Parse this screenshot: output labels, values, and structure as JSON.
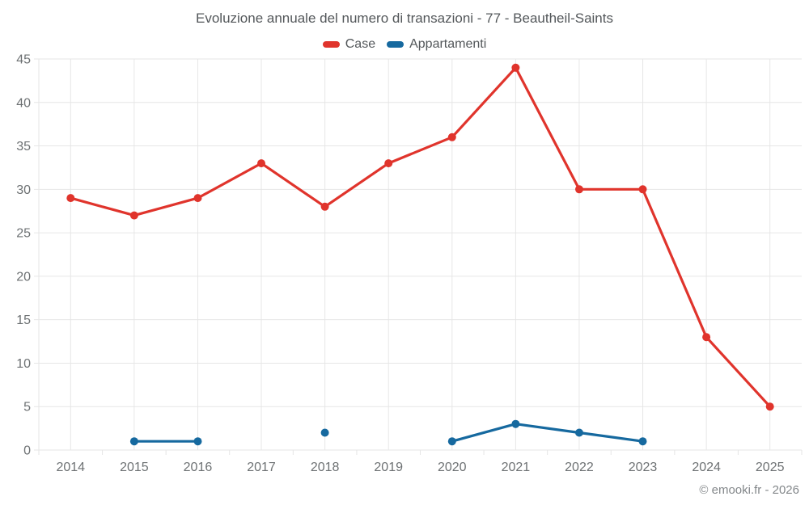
{
  "header": {
    "title": "Evoluzione annuale del numero di transazioni - 77 - Beautheil-Saints"
  },
  "footer": {
    "copyright": "© emooki.fr - 2026"
  },
  "colors": {
    "background": "#ffffff",
    "title_text": "#53575a",
    "axis_text": "#6d7173",
    "footer_text": "#83878a",
    "grid": "#e6e6e6",
    "case_red": "#e0342c",
    "appartamenti_blue": "#16699f"
  },
  "chart_data": {
    "type": "line",
    "title": "Evoluzione annuale del numero di transazioni - 77 - Beautheil-Saints",
    "xlabel": "",
    "ylabel": "",
    "categories": [
      "2014",
      "2015",
      "2016",
      "2017",
      "2018",
      "2019",
      "2020",
      "2021",
      "2022",
      "2023",
      "2024",
      "2025"
    ],
    "series": [
      {
        "name": "Case",
        "color": "#e0342c",
        "values": [
          29,
          27,
          29,
          33,
          28,
          33,
          36,
          44,
          30,
          30,
          13,
          5
        ]
      },
      {
        "name": "Appartamenti",
        "color": "#16699f",
        "values": [
          null,
          1,
          1,
          null,
          2,
          null,
          1,
          3,
          2,
          1,
          null,
          null
        ]
      }
    ],
    "ylim": [
      0,
      45
    ],
    "ytick_step": 5,
    "grid": "on",
    "legend_position": "top",
    "marker_radius": 5,
    "line_width": 3.2
  }
}
